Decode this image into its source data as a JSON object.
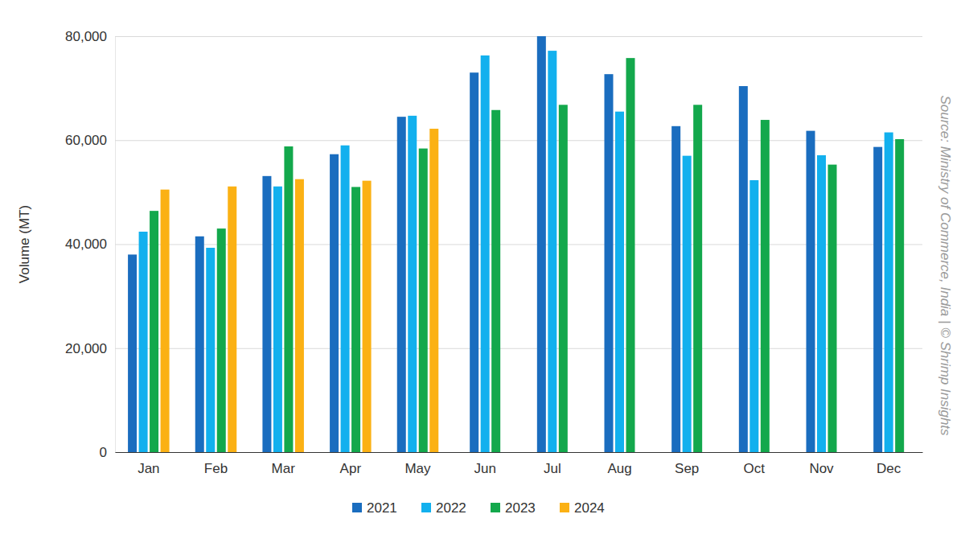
{
  "chart_data": {
    "type": "bar",
    "y_label": "Volume (MT)",
    "annotations": [
      "Source: Ministry of Commerce, India | © Shrimp Insights"
    ],
    "categories": [
      "Jan",
      "Feb",
      "Mar",
      "Apr",
      "May",
      "Jun",
      "Jul",
      "Aug",
      "Sep",
      "Oct",
      "Nov",
      "Dec"
    ],
    "series": [
      {
        "name": "2021",
        "color": "#1a6dbf",
        "values": [
          38000,
          41500,
          53100,
          57300,
          64500,
          73000,
          80000,
          72700,
          62700,
          70400,
          61800,
          58700
        ]
      },
      {
        "name": "2022",
        "color": "#12b0ee",
        "values": [
          42400,
          39300,
          51100,
          59000,
          64700,
          76300,
          77200,
          65500,
          57000,
          52300,
          57100,
          61500
        ]
      },
      {
        "name": "2023",
        "color": "#13a84c",
        "values": [
          46400,
          43000,
          58800,
          51000,
          58400,
          65800,
          66800,
          75800,
          66800,
          63900,
          55300,
          60200
        ]
      },
      {
        "name": "2024",
        "color": "#fbb114",
        "values": [
          50500,
          51100,
          52500,
          52200,
          62200,
          null,
          null,
          null,
          null,
          null,
          null,
          null
        ]
      }
    ],
    "ylim": [
      0,
      80000
    ],
    "yticks": [
      0,
      {
        "value": 20000,
        "label": "20,000"
      },
      {
        "value": 40000,
        "label": "40,000"
      },
      {
        "value": 60000,
        "label": "60,000"
      },
      {
        "value": 80000,
        "label": "80,000"
      }
    ],
    "grid": true,
    "legend": "bottom"
  }
}
